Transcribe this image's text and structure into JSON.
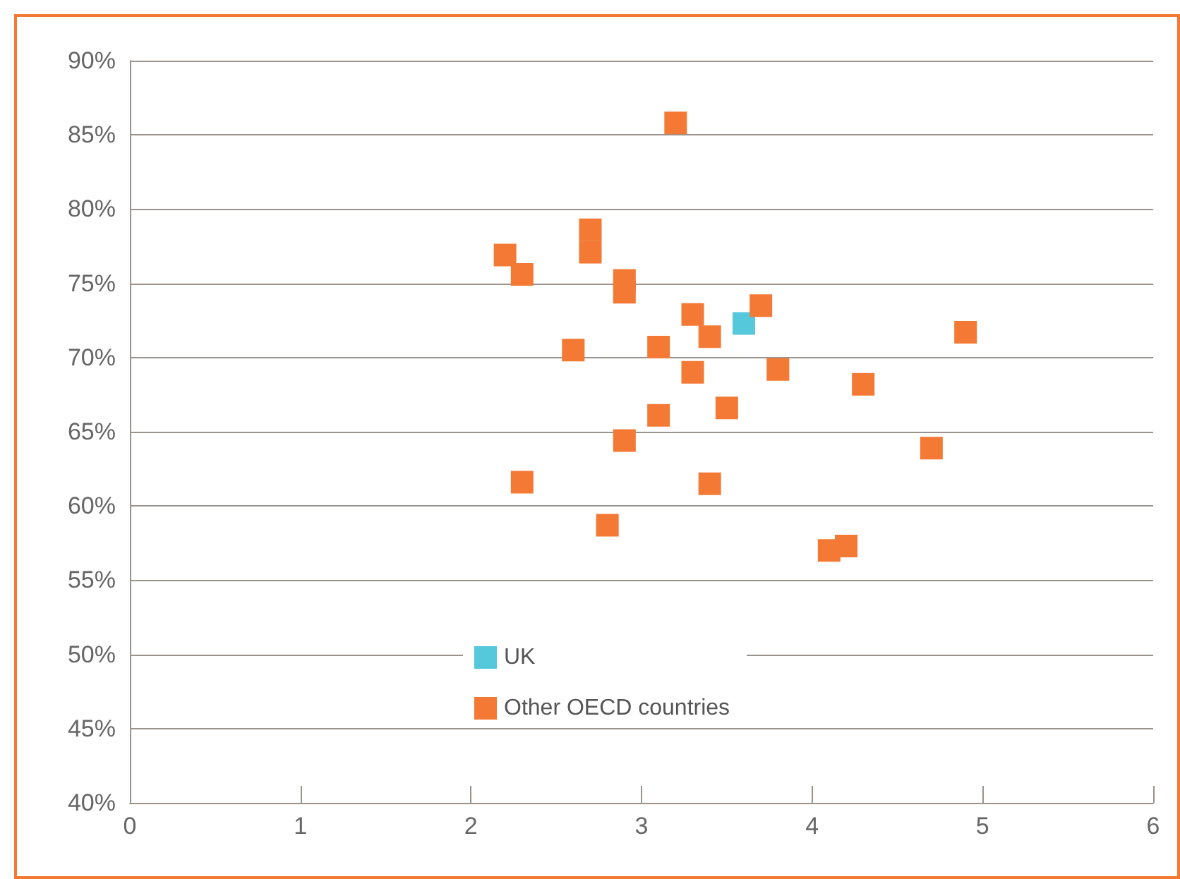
{
  "chart_data": {
    "type": "scatter",
    "marker": "square",
    "grid": "y",
    "legend": "bottom",
    "xlim": [
      0,
      6
    ],
    "xticks": [
      0,
      1,
      2,
      3,
      4,
      5,
      6
    ],
    "ylim": [
      40,
      90
    ],
    "yticks": [
      {
        "value": 40,
        "label": "40%"
      },
      {
        "value": 45,
        "label": "45%"
      },
      {
        "value": 50,
        "label": "50%"
      },
      {
        "value": 55,
        "label": "55%"
      },
      {
        "value": 60,
        "label": "60%"
      },
      {
        "value": 65,
        "label": "65%"
      },
      {
        "value": 70,
        "label": "70%"
      },
      {
        "value": 75,
        "label": "75%"
      },
      {
        "value": 80,
        "label": "80%"
      },
      {
        "value": 85,
        "label": "85%"
      },
      {
        "value": 90,
        "label": "90%"
      }
    ],
    "series": [
      {
        "name": "UK",
        "color": "#55c8dc",
        "x": [
          3.6
        ],
        "values": [
          72.3
        ]
      },
      {
        "name": "Other OECD countries",
        "color": "#f37934",
        "x": [
          3.2,
          2.2,
          2.3,
          2.7,
          2.7,
          2.9,
          2.9,
          2.6,
          3.1,
          3.3,
          3.4,
          3.7,
          3.3,
          3.8,
          3.5,
          3.1,
          2.9,
          2.3,
          3.4,
          2.8,
          4.1,
          4.2,
          4.3,
          4.7,
          4.9
        ],
        "values": [
          85.8,
          76.9,
          75.6,
          78.6,
          77.1,
          75.2,
          74.4,
          70.5,
          70.7,
          72.9,
          71.4,
          73.5,
          69.0,
          69.2,
          66.6,
          66.1,
          64.4,
          61.6,
          61.5,
          58.7,
          57.0,
          57.3,
          68.2,
          63.9,
          71.7
        ]
      }
    ]
  }
}
